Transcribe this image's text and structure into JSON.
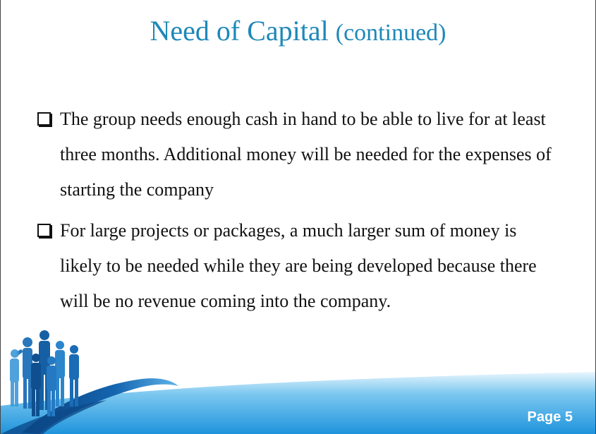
{
  "slide": {
    "title_main": "Need of Capital ",
    "title_paren": "(continued)",
    "bullets": [
      "The group needs enough cash in hand to be able to live for at least three months.  Additional money will be needed for the expenses of starting the company",
      "For large projects or packages, a much larger sum of money is likely to be needed while they are being developed because there will be no revenue coming into the company."
    ],
    "page_label": "Page 5"
  },
  "colors": {
    "title": "#1e88b8",
    "footer_blue": "#2a9ee0",
    "footer_dark": "#0d4a8a",
    "footer_light": "#bfe6fb"
  },
  "icons": {
    "bullet": "checkbox-icon",
    "footer_art": "business-people-silhouette"
  }
}
